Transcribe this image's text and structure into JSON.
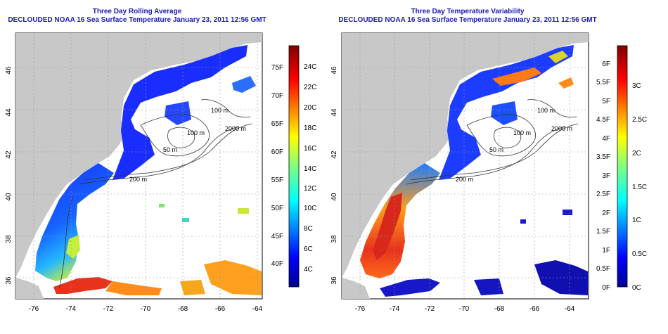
{
  "left": {
    "title": "Three Day Rolling Average",
    "subtitle": "DECLOUDED NOAA 16 Sea Surface Temperature January 23, 2011 12:56 GMT",
    "lat_ticks": [
      "36",
      "38",
      "40",
      "42",
      "44",
      "46"
    ],
    "lon_ticks": [
      "-76",
      "-74",
      "-72",
      "-70",
      "-68",
      "-66",
      "-64"
    ],
    "iso_f": [
      "40F",
      "45F",
      "50F",
      "55F",
      "60F",
      "65F",
      "70F",
      "75F"
    ],
    "iso_c": [
      "4C",
      "6C",
      "8C",
      "10C",
      "12C",
      "14C",
      "16C",
      "18C",
      "20C",
      "22C",
      "24C"
    ]
  },
  "right": {
    "title": "Three Day Temperature Variability",
    "subtitle": "DECLOUDED NOAA 16 Sea Surface Temperature January 23, 2011 12:56 GMT",
    "lat_ticks": [
      "36",
      "38",
      "40",
      "42",
      "44",
      "46"
    ],
    "lon_ticks": [
      "-76",
      "-74",
      "-72",
      "-70",
      "-68",
      "-66",
      "-64"
    ],
    "var_f": [
      "0F",
      "0.5F",
      "1F",
      "1.5F",
      "2F",
      "2.5F",
      "3F",
      "3.5F",
      "4F",
      "4.5F",
      "5F",
      "5.5F",
      "6F"
    ],
    "var_c": [
      "0C",
      "0.5C",
      "1C",
      "1.5C",
      "2C",
      "2.5C",
      "3C"
    ]
  },
  "contours": {
    "m100": "100 m",
    "m200": "200 m",
    "m2000": "2000 m",
    "m50": "50 m"
  },
  "colors": {
    "title": "#1a1ab8",
    "land": "#c8c8c8",
    "contour": "#333333"
  }
}
